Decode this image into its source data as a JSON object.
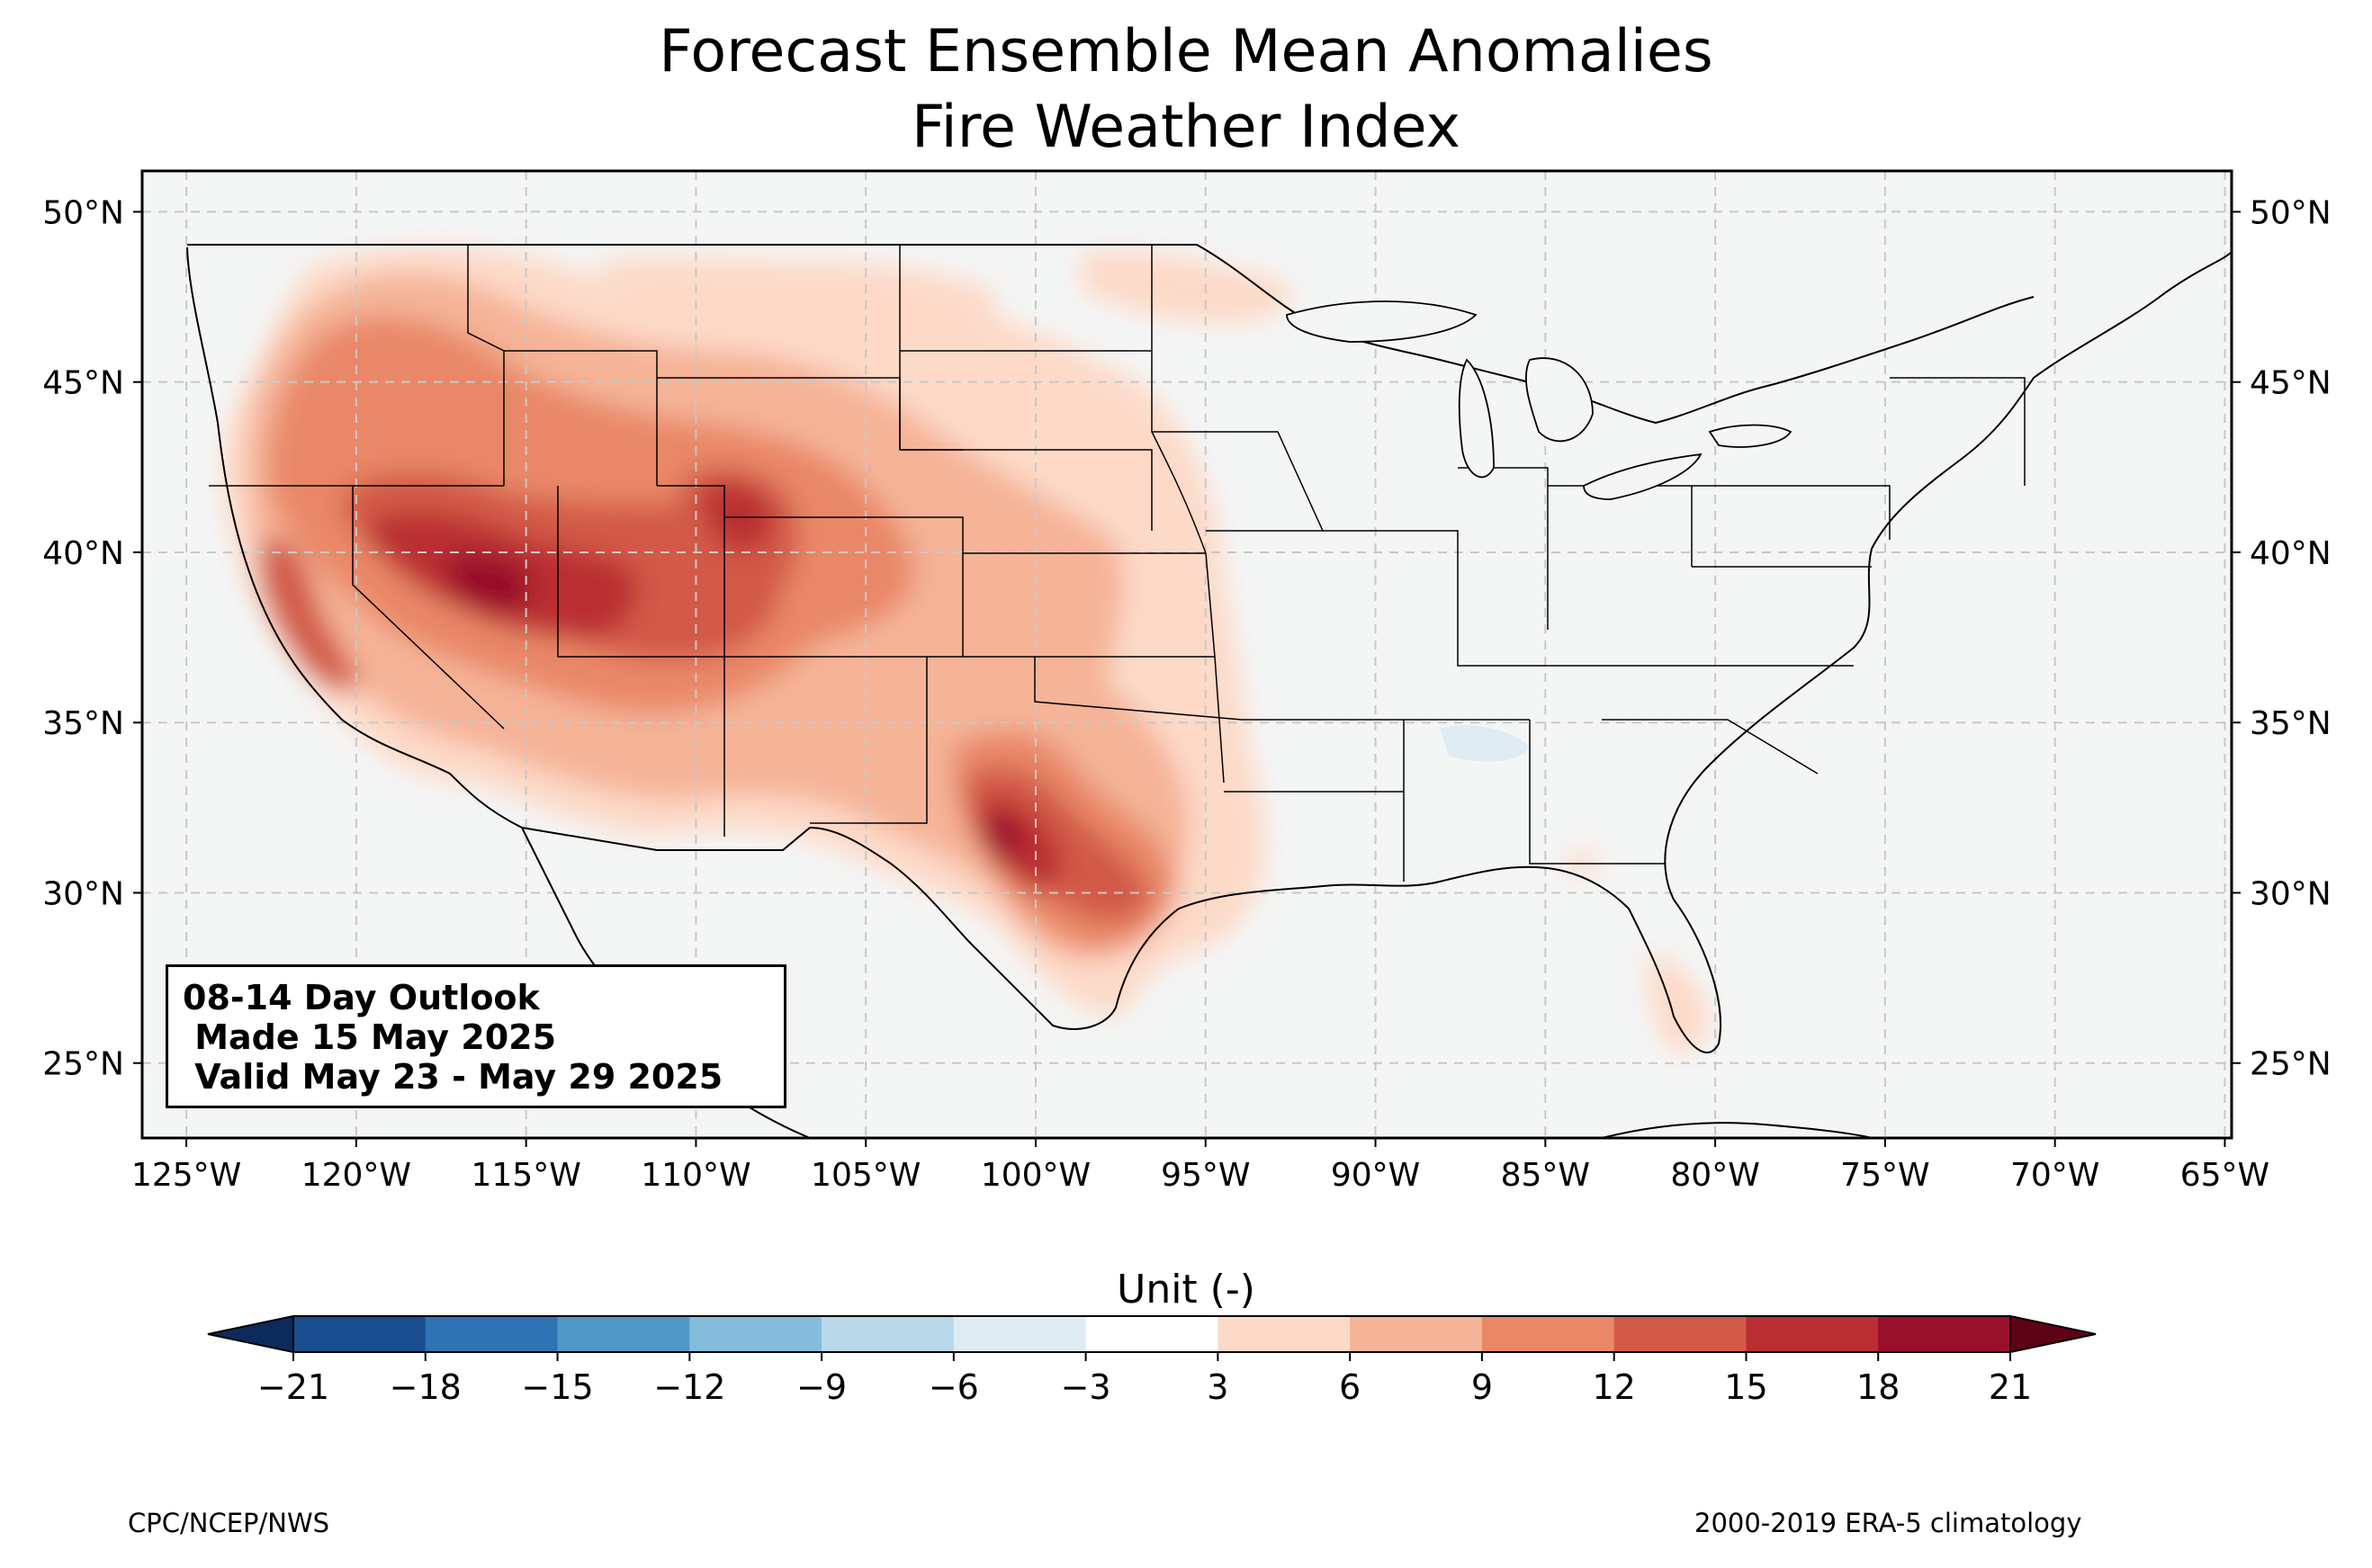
{
  "title": {
    "line1": "Forecast Ensemble Mean Anomalies",
    "line2": "Fire Weather Index"
  },
  "map": {
    "lat_ticks": [
      "50°N",
      "45°N",
      "40°N",
      "35°N",
      "30°N",
      "25°N"
    ],
    "lon_ticks": [
      "125°W",
      "120°W",
      "115°W",
      "110°W",
      "105°W",
      "100°W",
      "95°W",
      "90°W",
      "85°W",
      "80°W",
      "75°W",
      "70°W",
      "65°W"
    ],
    "extent": {
      "lon_min": -126.3,
      "lon_max": -64.8,
      "lat_min": 22.8,
      "lat_max": 51.2
    },
    "gridlines": true,
    "background_color": "#f4f6f6"
  },
  "info_box": {
    "line1": "08-14 Day Outlook",
    "line2": " Made 15 May 2025",
    "line3": " Valid May 23 - May 29 2025"
  },
  "colorbar": {
    "title": "Unit (-)",
    "ticks": [
      "−21",
      "−18",
      "−15",
      "−12",
      "−9",
      "−6",
      "−3",
      "3",
      "6",
      "9",
      "12",
      "15",
      "18",
      "21"
    ],
    "colors": [
      "#1a4e8e",
      "#2f73b5",
      "#4f98c8",
      "#86bcdb",
      "#b9d8ea",
      "#e0ecf4",
      "#ffffff",
      "#fddac8",
      "#f5b397",
      "#e98867",
      "#d25a46",
      "#ba2e33",
      "#98102a"
    ],
    "under_color": "#0d2b5a",
    "over_color": "#5e0216",
    "extend": "both"
  },
  "footer": {
    "left": "CPC/NCEP/NWS",
    "right": "2000-2019 ERA-5 climatology"
  }
}
